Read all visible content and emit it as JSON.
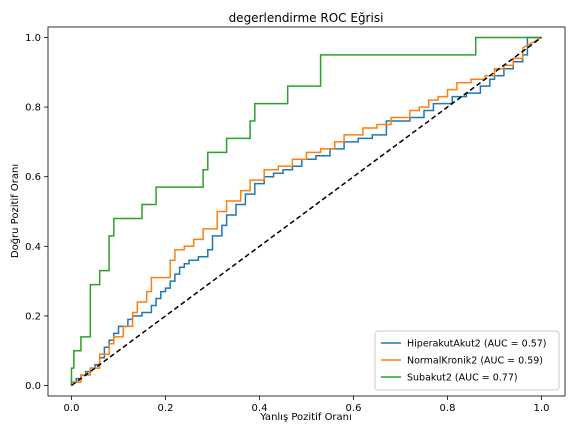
{
  "chart_data": {
    "type": "line",
    "title": "degerlendirme ROC Eğrisi",
    "xlabel": "Yanlış Pozitif Oranı",
    "ylabel": "Doğru Pozitif Oranı",
    "xlim": [
      -0.05,
      1.05
    ],
    "ylim": [
      -0.03,
      1.03
    ],
    "xticks": [
      "0.0",
      "0.2",
      "0.4",
      "0.6",
      "0.8",
      "1.0"
    ],
    "yticks": [
      "0.0",
      "0.2",
      "0.4",
      "0.6",
      "0.8",
      "1.0"
    ],
    "legend_position": "lower-right",
    "diagonal": {
      "x": [
        0,
        1
      ],
      "y": [
        0,
        1
      ],
      "color": "#000000",
      "style": "dashed"
    },
    "series": [
      {
        "name": "HiperakutAkut2 (AUC = 0.57)",
        "color": "#1f77b4",
        "x": [
          0.0,
          0.0,
          0.01,
          0.01,
          0.02,
          0.02,
          0.03,
          0.03,
          0.04,
          0.04,
          0.05,
          0.05,
          0.06,
          0.06,
          0.07,
          0.07,
          0.08,
          0.08,
          0.09,
          0.09,
          0.1,
          0.1,
          0.12,
          0.12,
          0.13,
          0.13,
          0.15,
          0.15,
          0.17,
          0.17,
          0.18,
          0.18,
          0.19,
          0.19,
          0.2,
          0.2,
          0.21,
          0.21,
          0.22,
          0.22,
          0.23,
          0.23,
          0.24,
          0.24,
          0.25,
          0.25,
          0.27,
          0.27,
          0.29,
          0.29,
          0.3,
          0.3,
          0.32,
          0.32,
          0.33,
          0.33,
          0.35,
          0.35,
          0.37,
          0.37,
          0.39,
          0.39,
          0.41,
          0.41,
          0.43,
          0.43,
          0.45,
          0.45,
          0.47,
          0.47,
          0.49,
          0.49,
          0.52,
          0.52,
          0.55,
          0.55,
          0.58,
          0.58,
          0.61,
          0.61,
          0.64,
          0.64,
          0.67,
          0.67,
          0.72,
          0.72,
          0.75,
          0.75,
          0.77,
          0.77,
          0.81,
          0.81,
          0.84,
          0.84,
          0.87,
          0.87,
          0.89,
          0.89,
          0.9,
          0.9,
          0.92,
          0.92,
          0.94,
          0.94,
          0.96,
          0.96,
          0.97,
          0.97,
          1.0
        ],
        "y": [
          0.0,
          0.01,
          0.01,
          0.02,
          0.02,
          0.03,
          0.03,
          0.04,
          0.04,
          0.05,
          0.05,
          0.06,
          0.06,
          0.08,
          0.08,
          0.11,
          0.11,
          0.13,
          0.13,
          0.15,
          0.15,
          0.17,
          0.17,
          0.19,
          0.19,
          0.2,
          0.2,
          0.21,
          0.21,
          0.23,
          0.23,
          0.25,
          0.25,
          0.27,
          0.27,
          0.28,
          0.28,
          0.3,
          0.3,
          0.32,
          0.32,
          0.34,
          0.34,
          0.35,
          0.35,
          0.36,
          0.36,
          0.37,
          0.37,
          0.39,
          0.39,
          0.43,
          0.43,
          0.46,
          0.46,
          0.49,
          0.49,
          0.52,
          0.52,
          0.55,
          0.55,
          0.58,
          0.58,
          0.6,
          0.6,
          0.61,
          0.61,
          0.62,
          0.62,
          0.63,
          0.63,
          0.65,
          0.65,
          0.66,
          0.66,
          0.68,
          0.68,
          0.7,
          0.7,
          0.71,
          0.71,
          0.72,
          0.72,
          0.76,
          0.76,
          0.77,
          0.77,
          0.79,
          0.79,
          0.81,
          0.81,
          0.83,
          0.83,
          0.84,
          0.84,
          0.86,
          0.86,
          0.88,
          0.88,
          0.89,
          0.89,
          0.91,
          0.91,
          0.93,
          0.93,
          0.95,
          0.95,
          1.0,
          1.0
        ]
      },
      {
        "name": "NormalKronik2 (AUC = 0.59)",
        "color": "#ff7f0e",
        "x": [
          0.0,
          0.0,
          0.02,
          0.02,
          0.04,
          0.04,
          0.06,
          0.06,
          0.08,
          0.08,
          0.09,
          0.09,
          0.11,
          0.11,
          0.13,
          0.13,
          0.14,
          0.14,
          0.16,
          0.16,
          0.17,
          0.17,
          0.21,
          0.21,
          0.22,
          0.22,
          0.24,
          0.24,
          0.26,
          0.26,
          0.28,
          0.28,
          0.31,
          0.31,
          0.33,
          0.33,
          0.36,
          0.36,
          0.38,
          0.38,
          0.41,
          0.41,
          0.44,
          0.44,
          0.47,
          0.47,
          0.5,
          0.5,
          0.53,
          0.53,
          0.56,
          0.56,
          0.58,
          0.58,
          0.62,
          0.62,
          0.65,
          0.65,
          0.68,
          0.68,
          0.72,
          0.72,
          0.74,
          0.74,
          0.76,
          0.76,
          0.78,
          0.78,
          0.8,
          0.8,
          0.82,
          0.82,
          0.85,
          0.85,
          0.88,
          0.88,
          0.9,
          0.9,
          0.92,
          0.92,
          0.94,
          0.94,
          0.96,
          0.96,
          1.0
        ],
        "y": [
          0.0,
          0.01,
          0.01,
          0.03,
          0.03,
          0.05,
          0.05,
          0.09,
          0.09,
          0.12,
          0.12,
          0.14,
          0.14,
          0.17,
          0.17,
          0.21,
          0.21,
          0.24,
          0.24,
          0.27,
          0.27,
          0.31,
          0.31,
          0.36,
          0.36,
          0.39,
          0.39,
          0.4,
          0.4,
          0.42,
          0.42,
          0.45,
          0.45,
          0.5,
          0.5,
          0.53,
          0.53,
          0.56,
          0.56,
          0.59,
          0.59,
          0.62,
          0.62,
          0.63,
          0.63,
          0.65,
          0.65,
          0.67,
          0.67,
          0.68,
          0.68,
          0.7,
          0.7,
          0.72,
          0.72,
          0.74,
          0.74,
          0.75,
          0.75,
          0.77,
          0.77,
          0.79,
          0.79,
          0.8,
          0.8,
          0.82,
          0.82,
          0.83,
          0.83,
          0.85,
          0.85,
          0.87,
          0.87,
          0.88,
          0.88,
          0.89,
          0.89,
          0.91,
          0.91,
          0.92,
          0.92,
          0.94,
          0.94,
          0.97,
          1.0
        ]
      },
      {
        "name": "Subakut2 (AUC = 0.77)",
        "color": "#2ca02c",
        "x": [
          0.0,
          0.0,
          0.005,
          0.005,
          0.02,
          0.02,
          0.04,
          0.04,
          0.06,
          0.06,
          0.08,
          0.08,
          0.09,
          0.09,
          0.15,
          0.15,
          0.18,
          0.18,
          0.28,
          0.28,
          0.29,
          0.29,
          0.33,
          0.33,
          0.38,
          0.38,
          0.39,
          0.39,
          0.46,
          0.46,
          0.53,
          0.53,
          0.86,
          0.86,
          0.97,
          0.97,
          1.0
        ],
        "y": [
          0.0,
          0.05,
          0.05,
          0.1,
          0.1,
          0.14,
          0.14,
          0.29,
          0.29,
          0.33,
          0.33,
          0.43,
          0.43,
          0.48,
          0.48,
          0.52,
          0.52,
          0.57,
          0.57,
          0.62,
          0.62,
          0.67,
          0.67,
          0.71,
          0.71,
          0.76,
          0.76,
          0.81,
          0.81,
          0.86,
          0.86,
          0.95,
          0.95,
          1.0,
          1.0,
          1.0,
          1.0
        ]
      }
    ]
  }
}
